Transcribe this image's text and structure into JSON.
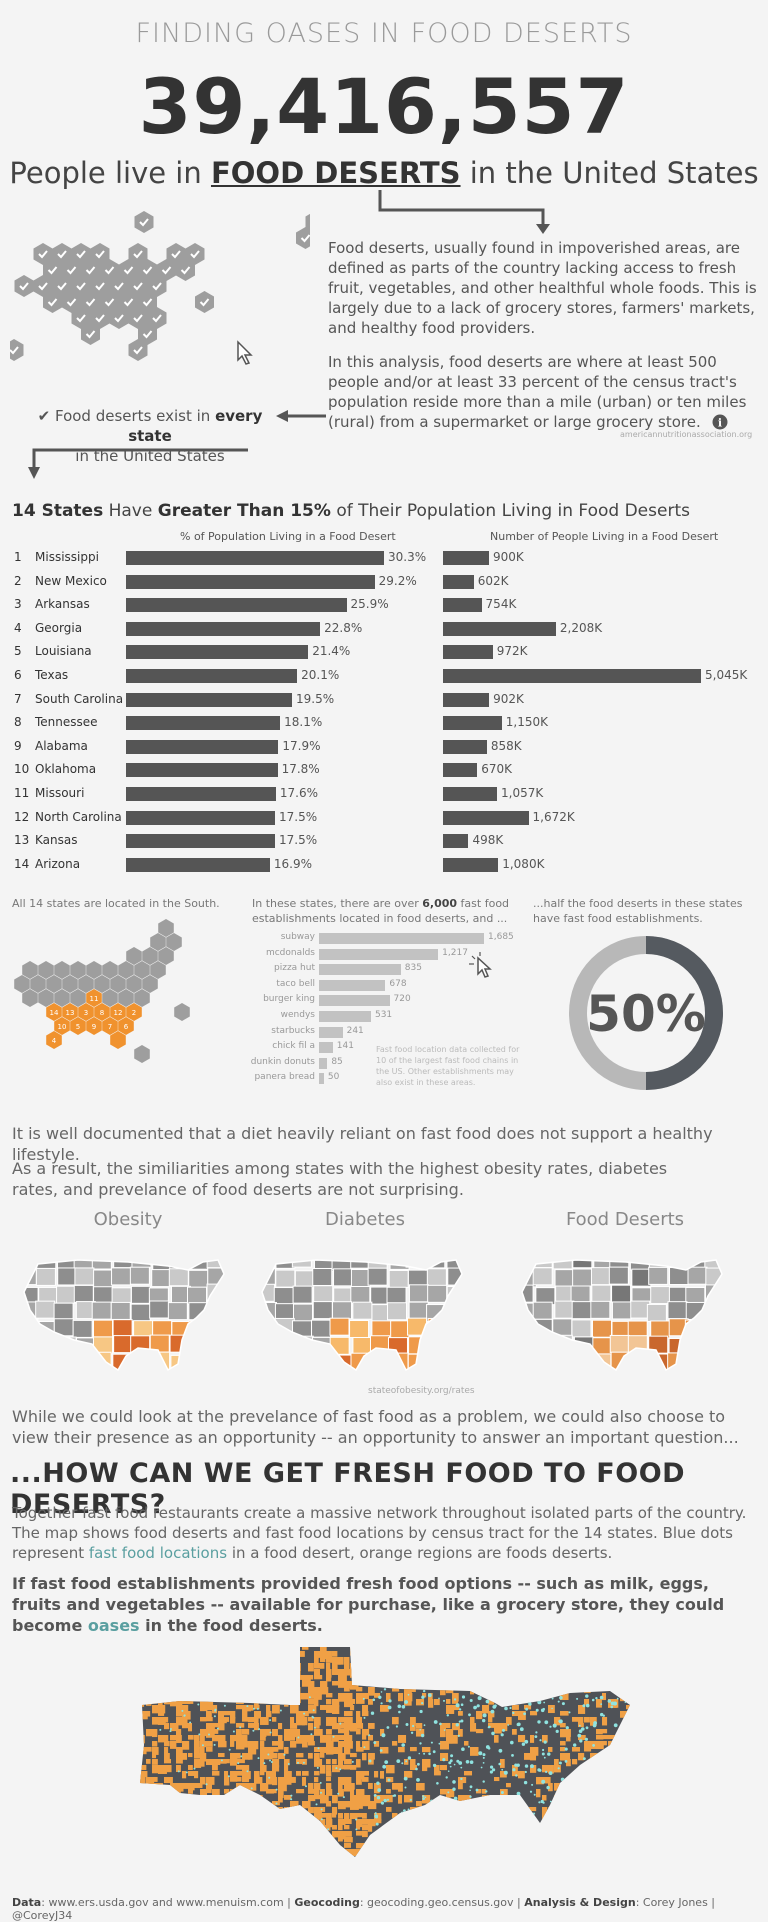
{
  "header": {
    "kicker": "FINDING OASES IN FOOD DESERTS",
    "big_number": "39,416,557",
    "subtitle_pre": "People live in ",
    "subtitle_bold": "FOOD DESERTS",
    "subtitle_post": " in the United States"
  },
  "intro": {
    "para1": "Food deserts, usually found in impoverished areas, are defined  as parts of the country lacking access to fresh fruit, vegetables, and other healthful whole foods. This is largely due to a lack of grocery stores, farmers' markets, and healthy food providers.",
    "para2": "In this analysis, food deserts are where at least 500 people and/or at least 33 percent of the census tract's population reside more than a mile (urban) or ten miles (rural) from a supermarket or large grocery store.",
    "source": "americannutritionassociation.org",
    "every_state_pre": "Food deserts exist in ",
    "every_state_bold": "every state",
    "every_state_post": "in the United States",
    "info_icon": "info-icon"
  },
  "states_section": {
    "title_num": "14 States",
    "title_mid": " Have ",
    "title_bold": "Greater Than 15%",
    "title_post": " of Their Population Living in Food Deserts",
    "col1_header": "% of Population Living in a Food Desert",
    "col2_header": "Number of People Living in a Food Desert"
  },
  "chart_data": [
    {
      "type": "bar",
      "title": "% of Population Living in a Food Desert",
      "categories": [
        "Mississippi",
        "New Mexico",
        "Arkansas",
        "Georgia",
        "Louisiana",
        "Texas",
        "South Carolina",
        "Tennessee",
        "Alabama",
        "Oklahoma",
        "Missouri",
        "North Carolina",
        "Kansas",
        "Arizona"
      ],
      "ranks": [
        "1",
        "2",
        "3",
        "4",
        "5",
        "6",
        "7",
        "8",
        "9",
        "10",
        "11",
        "12",
        "13",
        "14"
      ],
      "values": [
        30.3,
        29.2,
        25.9,
        22.8,
        21.4,
        20.1,
        19.5,
        18.1,
        17.9,
        17.8,
        17.6,
        17.5,
        17.5,
        16.9
      ],
      "labels": [
        "30.3%",
        "29.2%",
        "25.9%",
        "22.8%",
        "21.4%",
        "20.1%",
        "19.5%",
        "18.1%",
        "17.9%",
        "17.8%",
        "17.6%",
        "17.5%",
        "17.5%",
        "16.9%"
      ]
    },
    {
      "type": "bar",
      "title": "Number of People Living in a Food Desert",
      "categories": [
        "Mississippi",
        "New Mexico",
        "Arkansas",
        "Georgia",
        "Louisiana",
        "Texas",
        "South Carolina",
        "Tennessee",
        "Alabama",
        "Oklahoma",
        "Missouri",
        "North Carolina",
        "Kansas",
        "Arizona"
      ],
      "values": [
        900,
        602,
        754,
        2208,
        972,
        5045,
        902,
        1150,
        858,
        670,
        1057,
        1672,
        498,
        1080
      ],
      "labels": [
        "900K",
        "602K",
        "754K",
        "2,208K",
        "972K",
        "5,045K",
        "902K",
        "1,150K",
        "858K",
        "670K",
        "1,057K",
        "1,672K",
        "498K",
        "1,080K"
      ]
    },
    {
      "type": "bar",
      "title": "Fast food establishments located in food deserts",
      "categories": [
        "subway",
        "mcdonalds",
        "pizza hut",
        "taco bell",
        "burger king",
        "wendys",
        "starbucks",
        "chick fil a",
        "dunkin donuts",
        "panera bread"
      ],
      "values": [
        1685,
        1217,
        835,
        678,
        720,
        531,
        241,
        141,
        85,
        50
      ],
      "labels": [
        "1,685",
        "1,217",
        "835",
        "678",
        "720",
        "531",
        "241",
        "141",
        "85",
        "50"
      ]
    },
    {
      "type": "pie",
      "title": "Food deserts with fast food establishments",
      "values": [
        50,
        50
      ],
      "label": "50%"
    }
  ],
  "south": {
    "caption": "All 14 states are located in the South.",
    "hex_numbers": [
      "11",
      "14",
      "13",
      "3",
      "8",
      "12",
      "2",
      "10",
      "5",
      "9",
      "7",
      "6",
      "4"
    ]
  },
  "fastfood": {
    "caption_pre": "In these states, there are over ",
    "caption_bold": "6,000",
    "caption_post": " fast food establishments located in food deserts, and ...",
    "note": "Fast food location data collected for 10 of the largest fast food chains in the US. Other establishments may also exist in these areas."
  },
  "half": {
    "caption": "...half the food deserts in these states have fast food establishments.",
    "value": "50%"
  },
  "health": {
    "p1": "It is well documented that a diet heavily reliant on fast food does not support a healthy lifestyle.",
    "p2": "As a result, the similiarities among states with the highest obesity rates, diabetes rates, and prevelance of food deserts are not surprising.",
    "map1": "Obesity",
    "map2": "Diabetes",
    "map3": "Food Deserts",
    "source": "stateofobesity.org/rates"
  },
  "closing": {
    "p1": "While we could look at the prevelance of fast food as a problem, we could also choose to view their presence as an opportunity -- an opportunity to answer an important question...",
    "headline": "...HOW CAN WE GET FRESH FOOD TO FOOD DESERTS?",
    "p2_pre": "Together fast food restaurants create a massive network throughout isolated parts of the country. The map shows food deserts and fast food locations by census tract for the 14 states. Blue dots represent ",
    "p2_teal": "fast food locations",
    "p2_post": "  in a food desert, orange regions are foods deserts.",
    "p3_pre": "If fast food establishments provided fresh food options -- such as milk, eggs, fruits and vegetables -- available for purchase, like a grocery store, they could become ",
    "p3_teal": "oases",
    "p3_post": " in the food deserts."
  },
  "footer": {
    "data_label": "Data",
    "data_value": ": www.ers.usda.gov and www.menuism.com | ",
    "geo_label": "Geocoding",
    "geo_value": ": geocoding.geo.census.gov | ",
    "design_label": "Analysis & Design",
    "design_value": ": Corey Jones | @CoreyJ34"
  },
  "colors": {
    "dark": "#555555",
    "orange": "#f0922e",
    "teal": "#5a9fa0",
    "gray": "#c2c2c2"
  }
}
